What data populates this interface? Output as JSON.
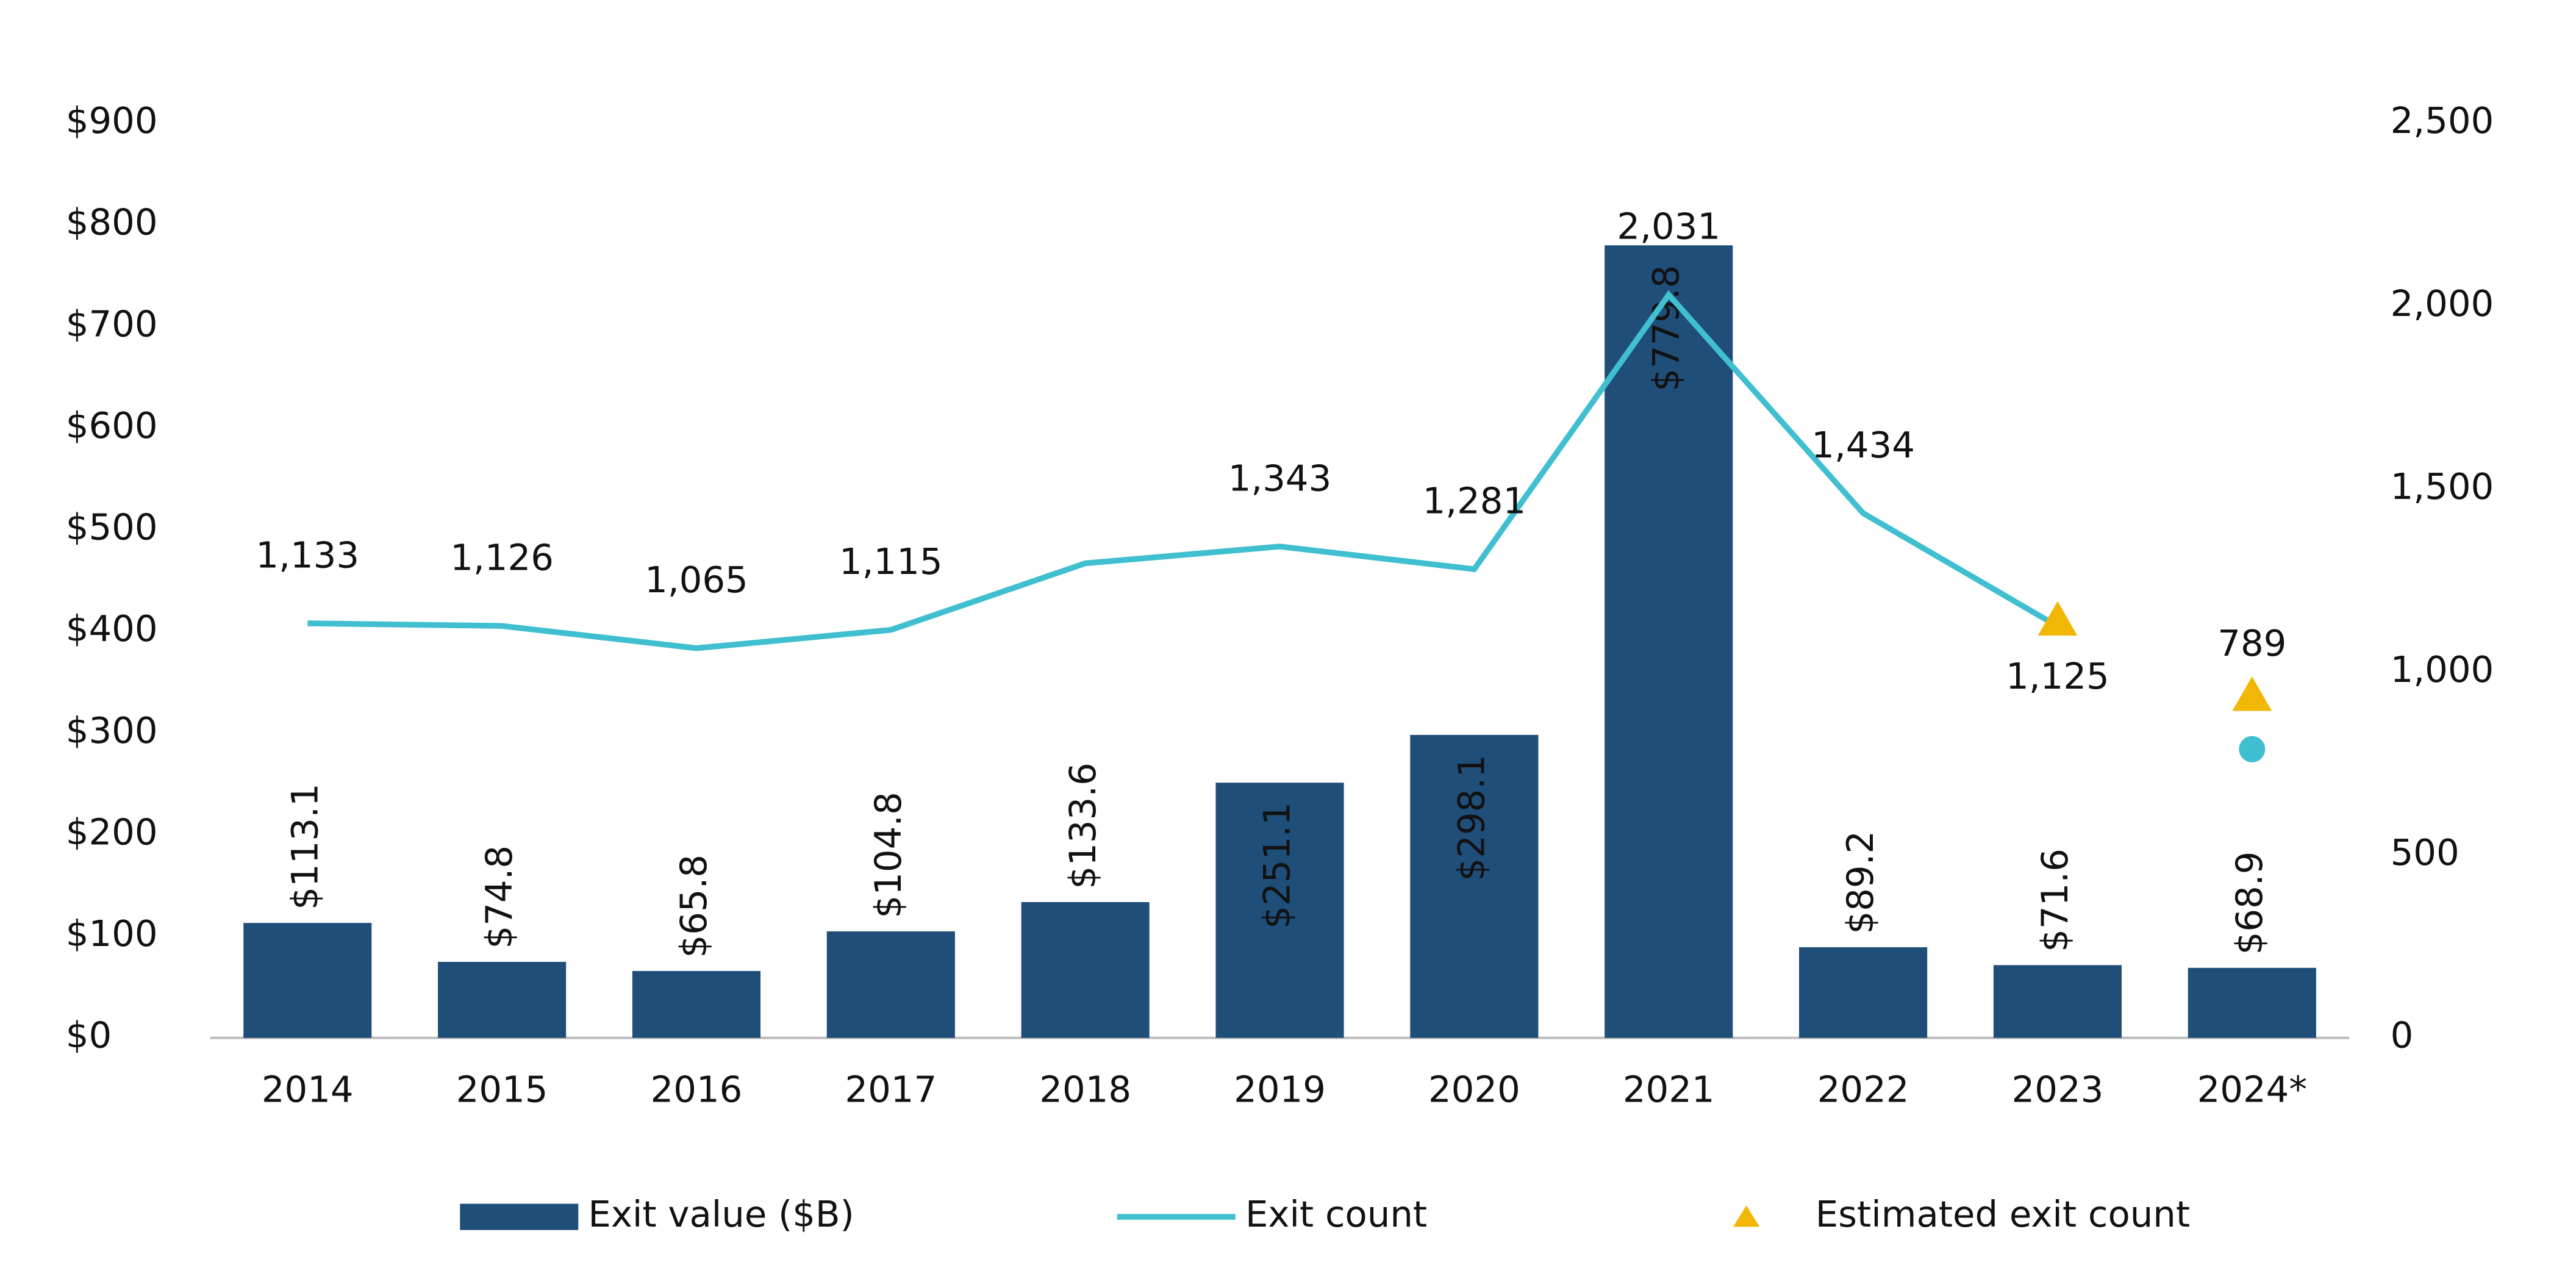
{
  "chart_data": {
    "type": "bar",
    "categories": [
      "2014",
      "2015",
      "2016",
      "2017",
      "2018",
      "2019",
      "2020",
      "2021",
      "2022",
      "2023",
      "2024*"
    ],
    "ylim": [
      0,
      900
    ],
    "yticks": [
      {
        "value": 0,
        "label": "$0"
      },
      {
        "value": 100,
        "label": "$100"
      },
      {
        "value": 200,
        "label": "$200"
      },
      {
        "value": 300,
        "label": "$300"
      },
      {
        "value": 400,
        "label": "$400"
      },
      {
        "value": 500,
        "label": "$500"
      },
      {
        "value": 600,
        "label": "$600"
      },
      {
        "value": 700,
        "label": "$700"
      },
      {
        "value": 800,
        "label": "$800"
      },
      {
        "value": 900,
        "label": "$900"
      }
    ],
    "y2lim": [
      0,
      2500
    ],
    "y2ticks": [
      0,
      500,
      {
        "value": 1000,
        "label": "1,000"
      },
      {
        "value": 1500,
        "label": "1,500"
      },
      {
        "value": 2000,
        "label": "2,000"
      },
      {
        "value": 2500,
        "label": "2,500"
      }
    ],
    "grid": false,
    "legend": "bottom",
    "series": [
      {
        "name": "Exit value ($B)",
        "type": "bar",
        "color": "#1f4e79",
        "values": [
          113.1,
          74.8,
          65.8,
          104.8,
          133.6,
          251.1,
          298.1,
          779.8,
          89.2,
          71.6,
          68.9
        ],
        "value_labels": [
          "$113.1",
          "$74.8",
          "$65.8",
          "$104.8",
          "$133.6",
          "$251.1",
          "$298.1",
          "$779.8",
          "$89.2",
          "$71.6",
          "$68.9"
        ]
      },
      {
        "name": "Exit count",
        "type": "line",
        "axis": "y2",
        "color": "#3fbfcf",
        "values": [
          1133,
          1126,
          1065,
          1115,
          1297,
          1343,
          1281,
          2031,
          1434,
          1125,
          null
        ],
        "value_labels": [
          "1,133",
          "1,126",
          "1,065",
          "1,115",
          null,
          "1,343",
          "1,281",
          "2,031",
          "1,434",
          "1,125",
          null
        ]
      },
      {
        "type": "dot",
        "axis": "y2",
        "color": "#3fbfcf",
        "values": [
          null,
          null,
          null,
          null,
          null,
          null,
          null,
          null,
          null,
          null,
          789
        ],
        "value_labels": [
          null,
          null,
          null,
          null,
          null,
          null,
          null,
          null,
          null,
          null,
          "789"
        ]
      },
      {
        "name": "Estimated exit count",
        "type": "triangle",
        "axis": "y2",
        "color": "#f2b705",
        "values": [
          null,
          null,
          null,
          null,
          null,
          null,
          null,
          null,
          null,
          1140,
          934
        ]
      }
    ]
  }
}
